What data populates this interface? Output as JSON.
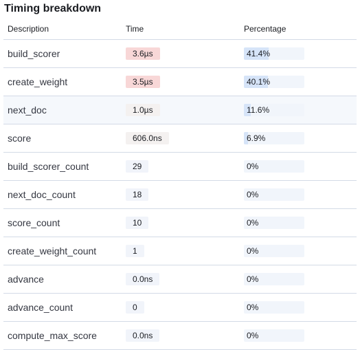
{
  "panel": {
    "title": "Timing breakdown"
  },
  "table": {
    "headers": {
      "description": "Description",
      "time": "Time",
      "percentage": "Percentage"
    },
    "rows": [
      {
        "description": "build_scorer",
        "time": "3.6µs",
        "percentage": "41.4%",
        "percent_value": 41.4,
        "time_level": "hot"
      },
      {
        "description": "create_weight",
        "time": "3.5µs",
        "percentage": "40.1%",
        "percent_value": 40.1,
        "time_level": "hot"
      },
      {
        "description": "next_doc",
        "time": "1.0µs",
        "percentage": "11.6%",
        "percent_value": 11.6,
        "time_level": "warm"
      },
      {
        "description": "score",
        "time": "606.0ns",
        "percentage": "6.9%",
        "percent_value": 6.9,
        "time_level": "warm"
      },
      {
        "description": "build_scorer_count",
        "time": "29",
        "percentage": "0%",
        "percent_value": 0,
        "time_level": "none"
      },
      {
        "description": "next_doc_count",
        "time": "18",
        "percentage": "0%",
        "percent_value": 0,
        "time_level": "none"
      },
      {
        "description": "score_count",
        "time": "10",
        "percentage": "0%",
        "percent_value": 0,
        "time_level": "none"
      },
      {
        "description": "create_weight_count",
        "time": "1",
        "percentage": "0%",
        "percent_value": 0,
        "time_level": "none"
      },
      {
        "description": "advance",
        "time": "0.0ns",
        "percentage": "0%",
        "percent_value": 0,
        "time_level": "none"
      },
      {
        "description": "advance_count",
        "time": "0",
        "percentage": "0%",
        "percent_value": 0,
        "time_level": "none"
      },
      {
        "description": "compute_max_score",
        "time": "0.0ns",
        "percentage": "0%",
        "percent_value": 0,
        "time_level": "none"
      }
    ],
    "highlighted_row": 2
  },
  "colors": {
    "hot_badge": "#f8d7d7",
    "warm_badge": "#f4f1f0",
    "neutral_badge": "#f1f4fa",
    "bar_track": "#f1f5fb",
    "bar_fill": "#d6e4f8",
    "row_highlight": "#f5f8fc"
  }
}
